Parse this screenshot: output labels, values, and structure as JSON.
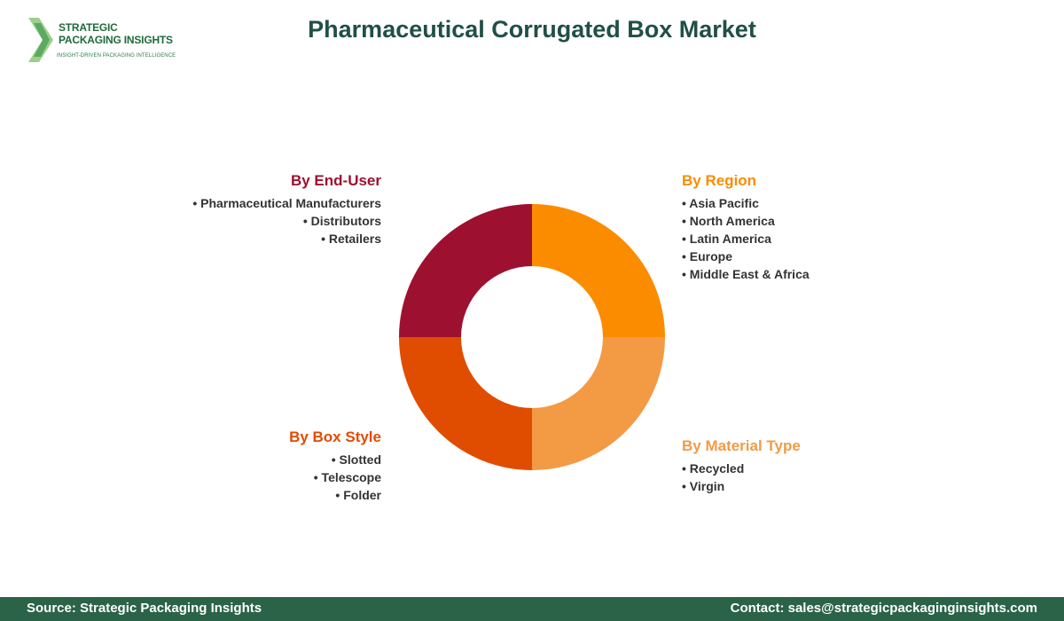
{
  "logo": {
    "line1": "STRATEGIC",
    "line2": "PACKAGING INSIGHTS",
    "tagline": "INSIGHT-DRIVEN PACKAGING INTELLIGENCE"
  },
  "title": "Pharmaceutical Corrugated Box Market",
  "chart_data": {
    "type": "pie",
    "donut": true,
    "title": "Pharmaceutical Corrugated Box Market",
    "slices": [
      {
        "name": "By Region",
        "value": 25,
        "color": "#fb8c00"
      },
      {
        "name": "By Material Type",
        "value": 25,
        "color": "#f39a45"
      },
      {
        "name": "By Box Style",
        "value": 25,
        "color": "#e04c00"
      },
      {
        "name": "By End-User",
        "value": 25,
        "color": "#9e1030"
      }
    ],
    "segments": {
      "end_user": {
        "title": "By End-User",
        "color": "#9e1030",
        "items": [
          "Pharmaceutical Manufacturers",
          "Distributors",
          "Retailers"
        ]
      },
      "region": {
        "title": "By Region",
        "color": "#fb8c00",
        "items": [
          "Asia Pacific",
          "North America",
          "Latin America",
          "Europe",
          "Middle East & Africa"
        ]
      },
      "box_style": {
        "title": "By Box Style",
        "color": "#e04c00",
        "items": [
          "Slotted",
          "Telescope",
          "Folder"
        ]
      },
      "material_type": {
        "title": "By Material Type",
        "color": "#f39a45",
        "items": [
          "Recycled",
          "Virgin"
        ]
      }
    }
  },
  "footer": {
    "source": "Source: Strategic Packaging Insights",
    "contact": "Contact: sales@strategicpackaginginsights.com"
  }
}
